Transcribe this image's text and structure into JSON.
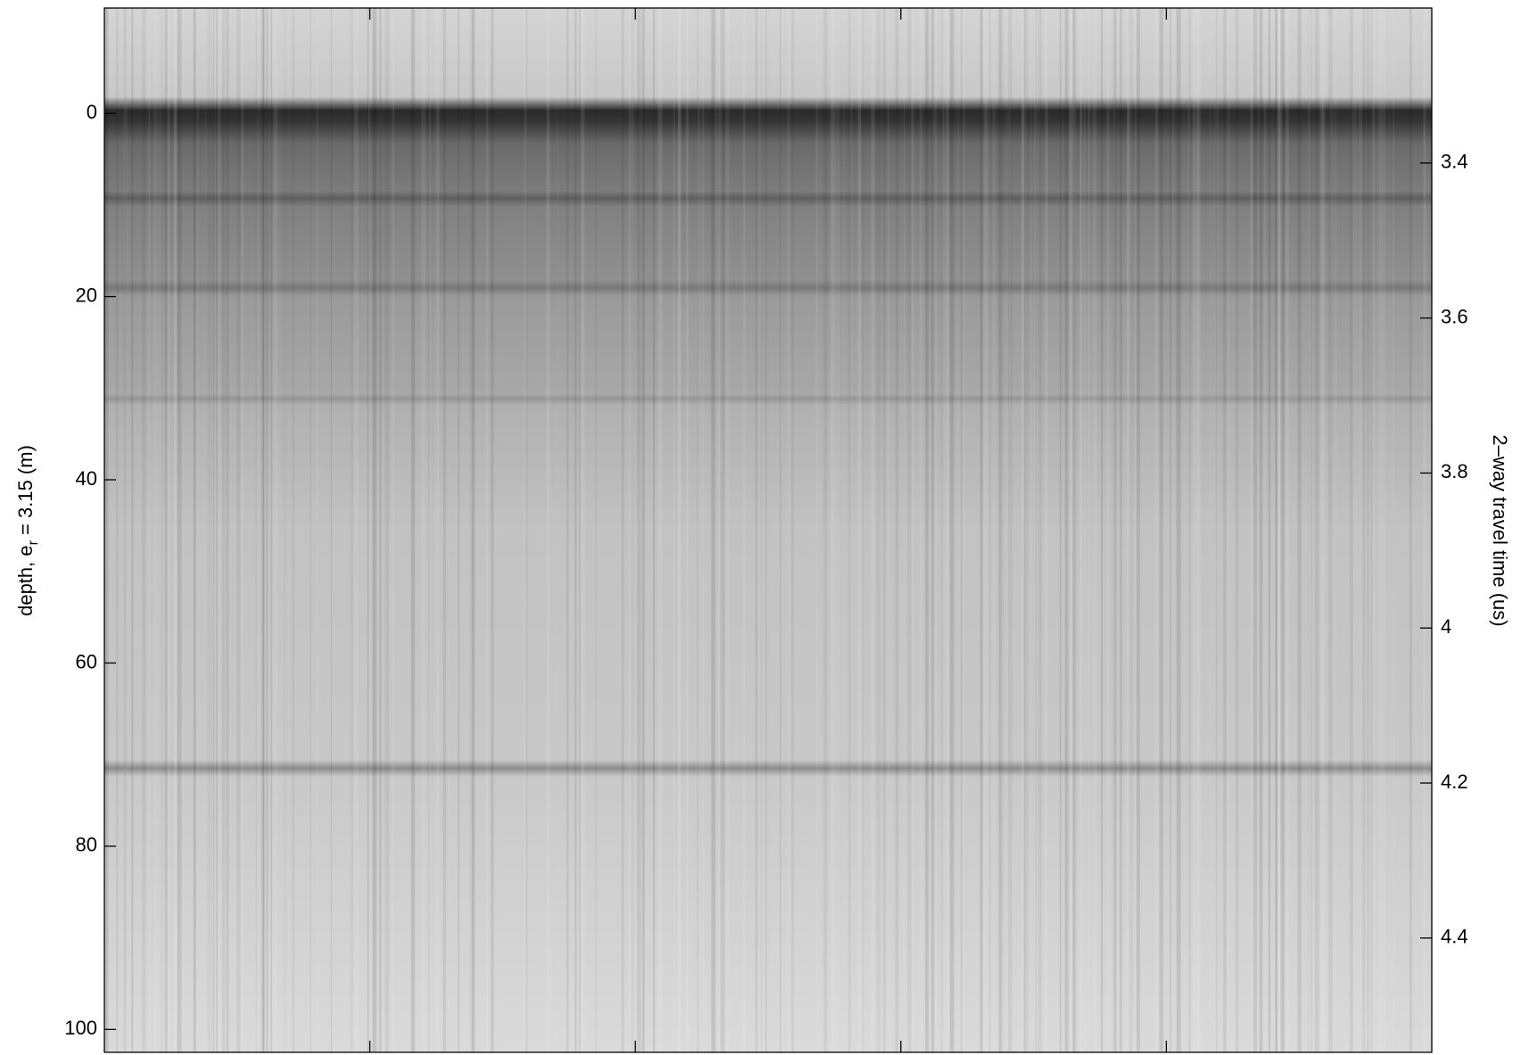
{
  "chart_data": {
    "type": "radargram",
    "ylabel": [
      "depth, e",
      "r",
      " = 3.15 (m)"
    ],
    "y2label": "2–way travel time (us)",
    "ylim": [
      -11.5,
      102.5
    ],
    "yticks": [
      0,
      20,
      40,
      60,
      80,
      100
    ],
    "y2lim": [
      3.2,
      4.5475
    ],
    "y2ticks": [
      3.4,
      3.6,
      3.8,
      4,
      4.2,
      4.4
    ],
    "y_reversed": true
  }
}
